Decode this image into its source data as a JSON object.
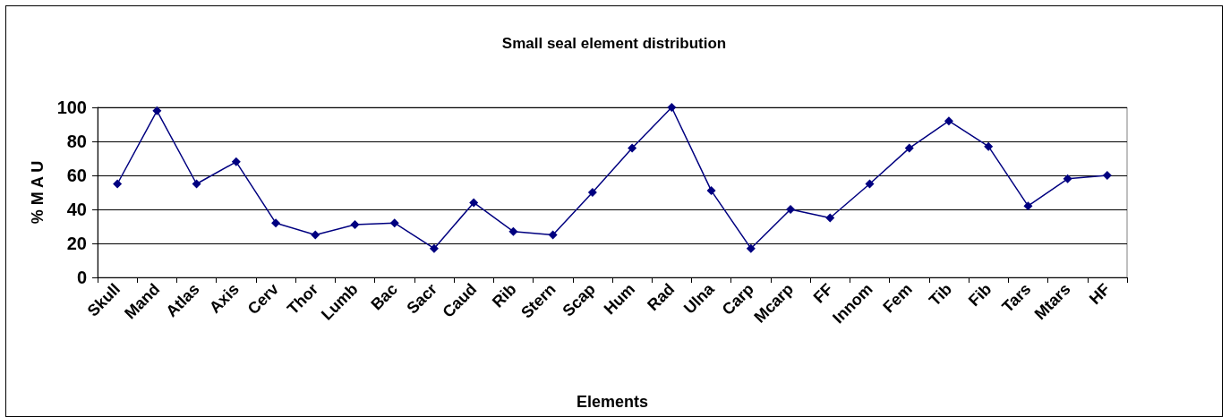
{
  "chart_data": {
    "type": "line",
    "title": "Small seal element distribution",
    "xlabel": "Elements",
    "ylabel": "% M A U",
    "categories": [
      "Skull",
      "Mand",
      "Atlas",
      "Axis",
      "Cerv",
      "Thor",
      "Lumb",
      "Bac",
      "Sacr",
      "Caud",
      "Rib",
      "Stern",
      "Scap",
      "Hum",
      "Rad",
      "Ulna",
      "Carp",
      "Mcarp",
      "FF",
      "Innom",
      "Fem",
      "Tib",
      "Fib",
      "Tars",
      "Mtars",
      "HF"
    ],
    "series": [
      {
        "color": "#000080",
        "values": [
          55,
          98,
          55,
          68,
          32,
          25,
          31,
          32,
          17,
          44,
          27,
          25,
          50,
          76,
          100,
          51,
          17,
          40,
          35,
          55,
          76,
          92,
          77,
          42,
          58,
          60
        ]
      }
    ],
    "ylim": [
      0,
      100
    ],
    "yticks": [
      0,
      20,
      40,
      60,
      80,
      100
    ],
    "grid": "y",
    "marker": "diamond",
    "line_style": "solid"
  }
}
